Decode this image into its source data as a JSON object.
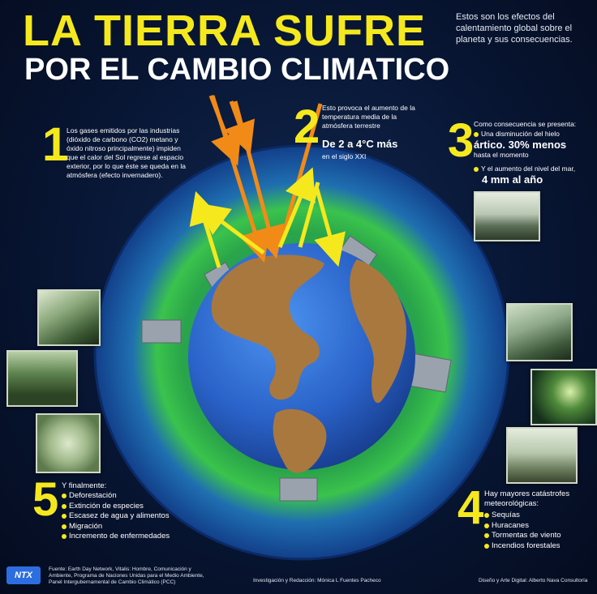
{
  "header": {
    "title_line1": "LA TIERRA SUFRE",
    "title_line2": "POR EL CAMBIO CLIMATICO",
    "intro": "Estos son los efectos del calentamiento global sobre el planeta y sus consecuencias."
  },
  "steps": {
    "step1": {
      "number": "1",
      "text": "Los gases emitidos por las industrias (dióxido de carbono (CO2) metano y óxido nitroso principalmente) impiden que el calor del Sol regrese al espacio exterior, por lo que éste se queda en la atmósfera (efecto invernadero)."
    },
    "step2": {
      "number": "2",
      "text": "Esto provoca el aumento de la temperatura media de la atmósfera terrestre",
      "highlight": "De 2 a 4°C más",
      "subtext": "en el siglo XXI"
    },
    "step3": {
      "number": "3",
      "intro": "Como consecuencia se presenta:",
      "item1_text": "Una disminución del hielo",
      "item1_highlight": "ártico. 30% menos",
      "item1_sub": "hasta el momento",
      "item2_text": "Y el aumento del nivel del mar,",
      "item2_highlight": "4 mm al año"
    },
    "step4": {
      "number": "4",
      "intro": "Hay mayores catástrofes meteorológicas:",
      "items": [
        "Sequías",
        "Huracanes",
        "Tormentas de viento",
        "Incendios forestales"
      ]
    },
    "step5": {
      "number": "5",
      "intro": "Y finalmente:",
      "items": [
        "Deforestación",
        "Extinción de especies",
        "Escasez de agua y alimentos",
        "Migración",
        "Incremento de enfermedades"
      ]
    }
  },
  "footer": {
    "logo": "NTX",
    "source": "Fuente: Earth Day Network, Vitalis: Hombre, Comunicación y Ambiente, Programa de Naciones Unidas para el Medio Ambiente, Panel Intergubernamental de Cambio Climático (PCC)",
    "research": "Investigación y Redacción: Mónica L Fuentes Pacheco",
    "design": "Diseño y Arte Digital: Alberto Nava Consultoría"
  },
  "colors": {
    "accent_yellow": "#f5e91e",
    "sun_ray_orange": "#f28a17",
    "ocean_blue": "#2d6fd6",
    "land_brown": "#a9783f",
    "atmosphere_green": "#33c04a"
  }
}
